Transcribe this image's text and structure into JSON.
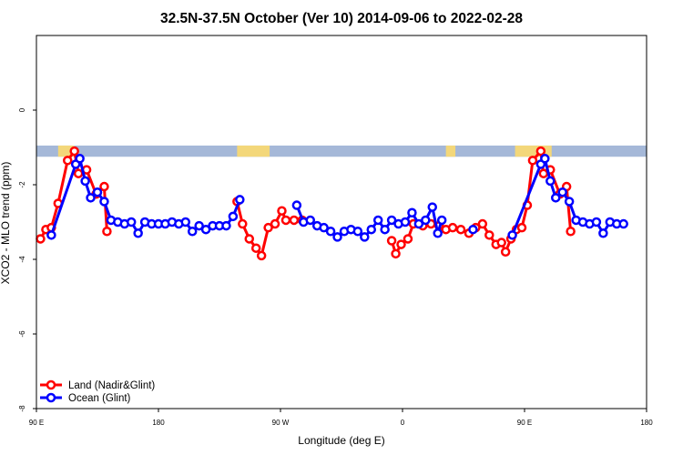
{
  "chart_data": {
    "type": "line",
    "title": "32.5N-37.5N October (Ver 10)   2014-09-06 to 2022-02-28",
    "xlabel": "Longitude (deg E)",
    "ylabel": "XCO2 - MLO trend (ppm)",
    "xlim": [
      90,
      540
    ],
    "ylim": [
      -8,
      2
    ],
    "x_ticks": [
      {
        "value": 90,
        "label": "90 E"
      },
      {
        "value": 180,
        "label": "180"
      },
      {
        "value": 270,
        "label": "90 W"
      },
      {
        "value": 360,
        "label": "0"
      },
      {
        "value": 450,
        "label": "90 E"
      },
      {
        "value": 540,
        "label": "180"
      }
    ],
    "y_ticks": [
      {
        "value": 0,
        "label": "0"
      },
      {
        "value": -2,
        "label": "-2"
      },
      {
        "value": -4,
        "label": "-4"
      },
      {
        "value": -6,
        "label": "-6"
      },
      {
        "value": -8,
        "label": "-8"
      }
    ],
    "legend_position": "bottom-left",
    "land_ocean_strip": {
      "y_top": -0.95,
      "y_bottom": -1.25,
      "ocean_color": "#a5b8d8",
      "land_color": "#f3d77a",
      "land_segments": [
        [
          106,
          118
        ],
        [
          238,
          262
        ],
        [
          392,
          399
        ],
        [
          443,
          470
        ]
      ]
    },
    "series": [
      {
        "name": "Land (Nadir&Glint)",
        "color": "#ff0000",
        "segments": [
          [
            [
              93,
              -3.45
            ],
            [
              97,
              -3.2
            ],
            [
              101,
              -3.15
            ],
            [
              106,
              -2.5
            ],
            [
              113,
              -1.35
            ],
            [
              118,
              -1.1
            ],
            [
              121,
              -1.7
            ],
            [
              127,
              -1.6
            ],
            [
              134,
              -2.25
            ],
            [
              140,
              -2.05
            ],
            [
              142,
              -3.25
            ]
          ],
          [
            [
              238,
              -2.45
            ],
            [
              242,
              -3.05
            ],
            [
              247,
              -3.45
            ],
            [
              252,
              -3.7
            ],
            [
              256,
              -3.9
            ],
            [
              261,
              -3.15
            ],
            [
              266,
              -3.05
            ],
            [
              271,
              -2.7
            ],
            [
              274,
              -2.95
            ],
            [
              280,
              -2.95
            ],
            [
              286,
              -2.95
            ]
          ],
          [
            [
              352,
              -3.5
            ],
            [
              355,
              -3.85
            ],
            [
              359,
              -3.6
            ],
            [
              364,
              -3.45
            ],
            [
              368,
              -3.05
            ],
            [
              375,
              -3.1
            ],
            [
              381,
              -3.05
            ],
            [
              387,
              -3.1
            ],
            [
              392,
              -3.2
            ],
            [
              397,
              -3.15
            ],
            [
              403,
              -3.2
            ],
            [
              409,
              -3.3
            ],
            [
              414,
              -3.15
            ],
            [
              419,
              -3.05
            ],
            [
              424,
              -3.35
            ],
            [
              429,
              -3.6
            ],
            [
              433,
              -3.55
            ],
            [
              436,
              -3.8
            ],
            [
              440,
              -3.45
            ],
            [
              444,
              -3.2
            ],
            [
              448,
              -3.15
            ],
            [
              452,
              -2.55
            ],
            [
              456,
              -1.35
            ],
            [
              462,
              -1.1
            ],
            [
              464,
              -1.7
            ],
            [
              469,
              -1.6
            ],
            [
              476,
              -2.25
            ],
            [
              481,
              -2.05
            ],
            [
              484,
              -3.25
            ]
          ]
        ]
      },
      {
        "name": "Ocean (Glint)",
        "color": "#0000ff",
        "segments": [
          [
            [
              101,
              -3.35
            ],
            [
              119,
              -1.45
            ],
            [
              122,
              -1.3
            ],
            [
              126,
              -1.9
            ],
            [
              130,
              -2.35
            ],
            [
              135,
              -2.2
            ],
            [
              140,
              -2.45
            ],
            [
              145,
              -2.95
            ],
            [
              150,
              -3.0
            ],
            [
              155,
              -3.05
            ],
            [
              160,
              -3.0
            ],
            [
              165,
              -3.3
            ],
            [
              170,
              -3.0
            ],
            [
              175,
              -3.05
            ],
            [
              180,
              -3.05
            ],
            [
              185,
              -3.05
            ],
            [
              190,
              -3.0
            ],
            [
              195,
              -3.05
            ],
            [
              200,
              -3.0
            ],
            [
              205,
              -3.25
            ],
            [
              210,
              -3.1
            ],
            [
              215,
              -3.2
            ],
            [
              220,
              -3.1
            ],
            [
              225,
              -3.1
            ],
            [
              230,
              -3.1
            ],
            [
              235,
              -2.85
            ],
            [
              240,
              -2.4
            ]
          ],
          [
            [
              282,
              -2.55
            ],
            [
              287,
              -3.0
            ],
            [
              292,
              -2.95
            ],
            [
              297,
              -3.1
            ],
            [
              302,
              -3.15
            ],
            [
              307,
              -3.25
            ],
            [
              312,
              -3.4
            ],
            [
              317,
              -3.25
            ],
            [
              322,
              -3.2
            ],
            [
              327,
              -3.25
            ],
            [
              332,
              -3.4
            ],
            [
              337,
              -3.2
            ],
            [
              342,
              -2.95
            ],
            [
              347,
              -3.2
            ],
            [
              352,
              -2.95
            ],
            [
              357,
              -3.05
            ],
            [
              362,
              -3.0
            ],
            [
              367,
              -2.75
            ],
            [
              372,
              -3.05
            ],
            [
              377,
              -2.95
            ],
            [
              382,
              -2.6
            ],
            [
              386,
              -3.3
            ],
            [
              389,
              -2.95
            ]
          ],
          [
            [
              412,
              -3.2
            ]
          ],
          [
            [
              441,
              -3.35
            ],
            [
              462,
              -1.45
            ],
            [
              465,
              -1.3
            ],
            [
              469,
              -1.9
            ],
            [
              473,
              -2.35
            ],
            [
              478,
              -2.2
            ],
            [
              483,
              -2.45
            ],
            [
              488,
              -2.95
            ],
            [
              493,
              -3.0
            ],
            [
              498,
              -3.05
            ],
            [
              503,
              -3.0
            ],
            [
              508,
              -3.3
            ],
            [
              513,
              -3.0
            ],
            [
              518,
              -3.05
            ],
            [
              523,
              -3.05
            ]
          ]
        ]
      }
    ]
  }
}
